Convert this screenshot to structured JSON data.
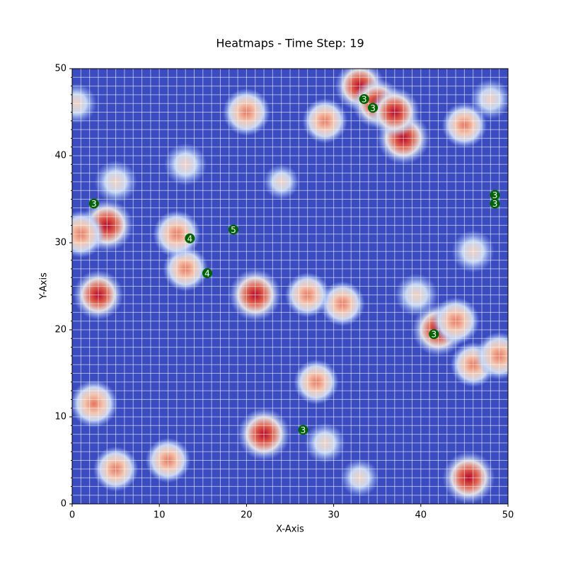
{
  "chart_data": {
    "type": "heatmap",
    "title": "Heatmaps - Time Step: 19",
    "x_label": "X-Axis",
    "y_label": "Y-Axis",
    "xlim": [
      0,
      50
    ],
    "ylim": [
      0,
      50
    ],
    "xticks": [
      0,
      10,
      20,
      30,
      40,
      50
    ],
    "yticks": [
      0,
      10,
      20,
      30,
      40,
      50
    ],
    "grid": true,
    "minor_step": 1,
    "background_color": "#3b4cc0",
    "hotspots": {
      "x": [
        4,
        1,
        3,
        2.5,
        5,
        11,
        13,
        12,
        13,
        20,
        21,
        22,
        29,
        33,
        35,
        38,
        37,
        42,
        44,
        46,
        49,
        45.5,
        28,
        31,
        27,
        39.5,
        46,
        45,
        48,
        0.5,
        24,
        5,
        29,
        33
      ],
      "y": [
        32,
        31,
        24,
        11.5,
        4,
        5,
        27,
        31,
        39,
        45,
        24,
        8,
        44,
        48,
        46,
        42,
        45,
        20,
        21,
        16,
        17,
        3,
        14,
        23,
        24,
        24,
        29,
        43.5,
        46.5,
        46,
        37,
        37,
        7,
        3
      ],
      "values": [
        1,
        0.8,
        0.9,
        0.8,
        0.7,
        0.7,
        0.7,
        0.8,
        0.6,
        0.8,
        1,
        1,
        0.7,
        0.9,
        0.9,
        1,
        0.9,
        1,
        0.8,
        0.7,
        0.8,
        1,
        0.7,
        0.7,
        0.7,
        0.6,
        0.6,
        0.7,
        0.5,
        0.5,
        0.3,
        0.6,
        0.5,
        0.4
      ]
    },
    "markers": {
      "color": "#006400",
      "x": [
        2.5,
        13.5,
        15.5,
        18.5,
        33.5,
        34.5,
        48.5,
        48.5,
        41.5,
        26.5
      ],
      "y": [
        34.5,
        30.5,
        26.5,
        31.5,
        46.5,
        45.5,
        35.5,
        34.5,
        19.5,
        8.5
      ],
      "values": [
        3,
        4,
        4,
        5,
        3,
        3,
        3,
        3,
        3,
        3
      ]
    }
  }
}
